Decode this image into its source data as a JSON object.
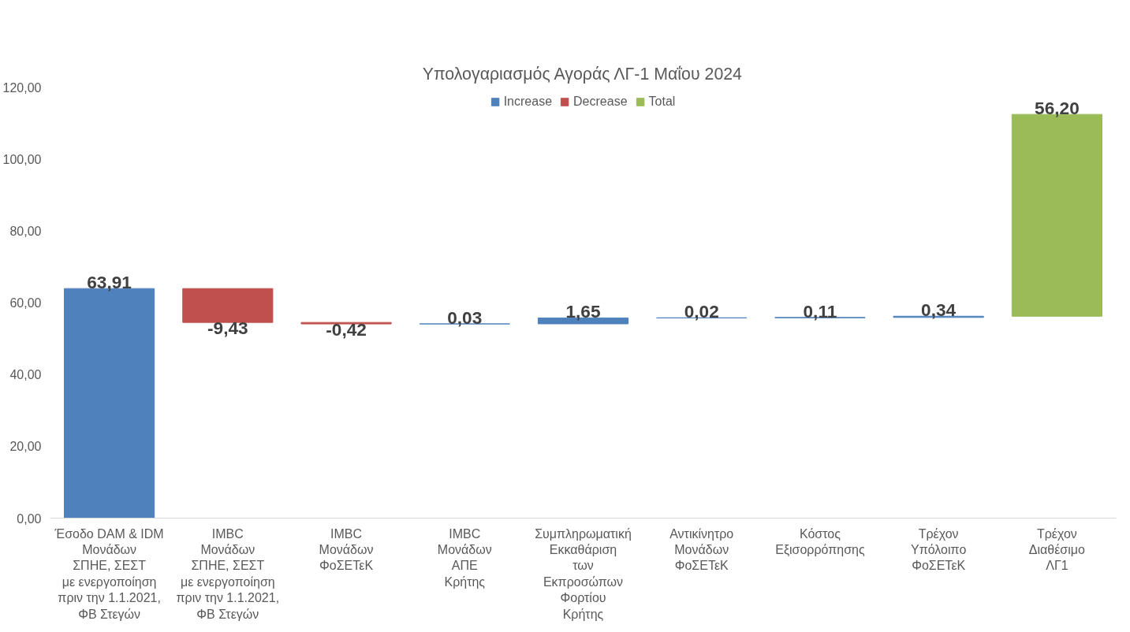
{
  "chart_data": {
    "type": "bar",
    "title": "Υπολογαριασμός Αγοράς ΛΓ-1 Μαΐου 2024",
    "categories": [
      "Έσοδο DAM & IDM\nΜονάδων\nΣΠΗΕ, ΣΕΣΤ\nμε ενεργοποίηση\nπριν την 1.1.2021,\nΦΒ Στεγών",
      "IMBC\nΜονάδων\nΣΠΗΕ, ΣΕΣΤ\nμε ενεργοποίηση\nπριν την 1.1.2021,\nΦΒ Στεγών",
      "IMBC\nΜονάδων\nΦοΣΕΤεΚ",
      "IMBC\nΜονάδων\nΑΠΕ\nΚρήτης",
      "Συμπληρωματική\nΕκκαθάριση\nτων\nΕκπροσώπων\nΦορτίου\nΚρήτης",
      "Αντικίνητρο\nΜονάδων\nΦοΣΕΤεΚ",
      "Κόστος\nΕξισορρόπησης",
      "Τρέχον\nΥπόλοιπο\nΦοΣΕΤεΚ",
      "Τρέχον\nΔιαθέσιμο\nΛΓ1"
    ],
    "series": [
      {
        "name": "Increase",
        "color": "#4f81bd",
        "values": [
          63.91,
          null,
          null,
          0.03,
          1.65,
          0.02,
          0.11,
          0.34,
          null
        ],
        "base": [
          0,
          null,
          null,
          54.06,
          54.09,
          55.74,
          55.76,
          55.87,
          null
        ],
        "value_labels": [
          "63,91",
          null,
          null,
          "0,03",
          "1,65",
          "0,02",
          "0,11",
          "0,34",
          null
        ]
      },
      {
        "name": "Decrease",
        "color": "#c0504d",
        "values": [
          null,
          -9.43,
          -0.42,
          null,
          null,
          null,
          null,
          null,
          null
        ],
        "base": [
          null,
          63.91,
          54.48,
          null,
          null,
          null,
          null,
          null,
          null
        ],
        "value_labels": [
          null,
          "-9,43",
          "-0,42",
          null,
          null,
          null,
          null,
          null,
          null
        ]
      },
      {
        "name": "Total",
        "color": "#9bbb59",
        "values": [
          null,
          null,
          null,
          null,
          null,
          null,
          null,
          null,
          56.2
        ],
        "base": [
          null,
          null,
          null,
          null,
          null,
          null,
          null,
          null,
          56.2
        ],
        "value_labels": [
          null,
          null,
          null,
          null,
          null,
          null,
          null,
          null,
          "56,20"
        ]
      }
    ],
    "ylim": [
      0,
      120
    ],
    "yticks": [
      {
        "value": 0,
        "label": "0,00"
      },
      {
        "value": 20,
        "label": "20,00"
      },
      {
        "value": 40,
        "label": "40,00"
      },
      {
        "value": 60,
        "label": "60,00"
      },
      {
        "value": 80,
        "label": "80,00"
      },
      {
        "value": 100,
        "label": "100,00"
      },
      {
        "value": 120,
        "label": "120,00"
      }
    ],
    "grid": false,
    "legend": "top"
  }
}
